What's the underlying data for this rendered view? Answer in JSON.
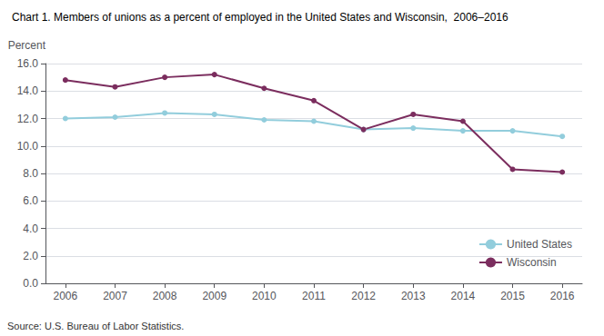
{
  "chart_data": {
    "type": "line",
    "title": "Chart 1. Members of unions as a percent of employed in the United States and Wisconsin,  2006–2016",
    "y_label": "Percent",
    "annotations": [
      "Source: U.S. Bureau of Labor Statistics."
    ],
    "x": [
      2006,
      2007,
      2008,
      2009,
      2010,
      2011,
      2012,
      2013,
      2014,
      2015,
      2016
    ],
    "series": [
      {
        "name": "United States",
        "color": "#92CDDC",
        "marker": "circle",
        "values": [
          12.0,
          12.1,
          12.4,
          12.3,
          11.9,
          11.8,
          11.2,
          11.3,
          11.1,
          11.1,
          10.7
        ]
      },
      {
        "name": "Wisconsin",
        "color": "#7B2D5E",
        "marker": "circle",
        "values": [
          14.8,
          14.3,
          15.0,
          15.2,
          14.2,
          13.3,
          11.2,
          12.3,
          11.8,
          8.3,
          8.1
        ]
      }
    ],
    "xlim": [
      2005.6,
      2016.4
    ],
    "xticks": [
      2006,
      2007,
      2008,
      2009,
      2010,
      2011,
      2012,
      2013,
      2014,
      2015,
      2016
    ],
    "ylim": [
      0.0,
      16.0
    ],
    "yticks": [
      {
        "value": 0,
        "label": "0.0"
      },
      {
        "value": 2,
        "label": "2.0"
      },
      {
        "value": 4,
        "label": "4.0"
      },
      {
        "value": 6,
        "label": "6.0"
      },
      {
        "value": 8,
        "label": "8.0"
      },
      {
        "value": 10,
        "label": "10.0"
      },
      {
        "value": 12,
        "label": "12.0"
      },
      {
        "value": 14,
        "label": "14.0"
      },
      {
        "value": 16,
        "label": "16.0"
      }
    ],
    "grid": true,
    "legend": "lower right"
  }
}
